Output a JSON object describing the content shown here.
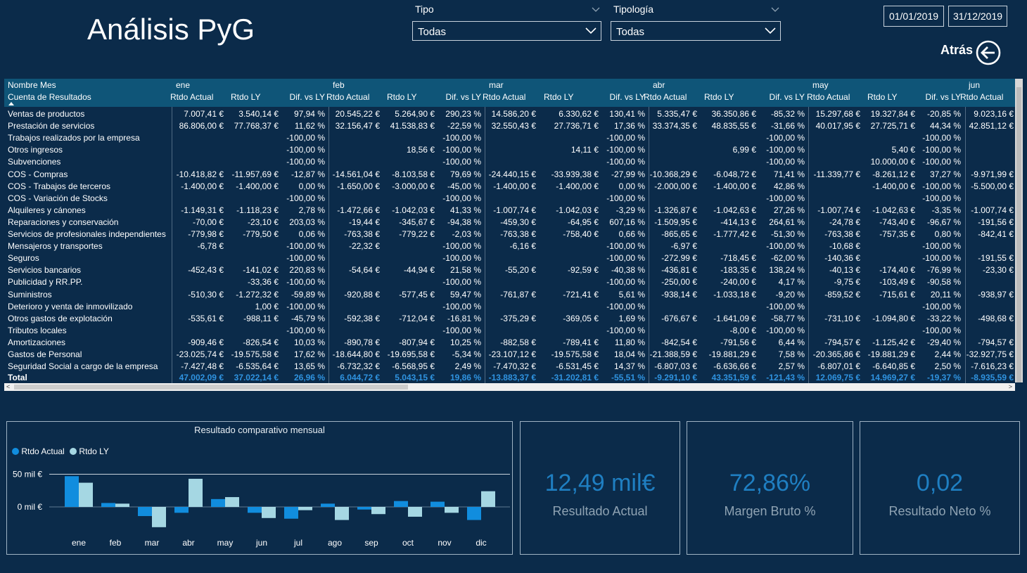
{
  "title": "Análisis PyG",
  "filters": {
    "tipo": {
      "label": "Tipo",
      "value": "Todas"
    },
    "tipologia": {
      "label": "Tipología",
      "value": "Todas"
    }
  },
  "date_range": {
    "start": "01/01/2019",
    "end": "31/12/2019"
  },
  "back_label": "Atrás",
  "matrix": {
    "row_header_1": "Nombre Mes",
    "row_header_2": "Cuenta de Resultados",
    "months": [
      "ene",
      "feb",
      "mar",
      "abr",
      "may",
      "jun"
    ],
    "measures": [
      "Rtdo Actual",
      "Rtdo LY",
      "Dif. vs LY"
    ],
    "rows": [
      {
        "label": "Ventas de productos",
        "values": [
          "7.007,41 €",
          "3.540,14 €",
          "97,94 %",
          "20.545,22 €",
          "5.264,90 €",
          "290,23 %",
          "14.586,20 €",
          "6.330,62 €",
          "130,41 %",
          "5.335,47 €",
          "36.350,86 €",
          "-85,32 %",
          "15.297,68 €",
          "19.327,84 €",
          "-20,85 %",
          "9.023,16 €"
        ]
      },
      {
        "label": "Prestación de servicios",
        "values": [
          "86.806,00 €",
          "77.768,37 €",
          "11,62 %",
          "32.156,47 €",
          "41.538,83 €",
          "-22,59 %",
          "32.550,43 €",
          "27.736,71 €",
          "17,36 %",
          "33.374,35 €",
          "48.835,55 €",
          "-31,66 %",
          "40.017,95 €",
          "27.725,71 €",
          "44,34 %",
          "42.851,12 €"
        ]
      },
      {
        "label": "Trabajos realizados por la empresa",
        "values": [
          "",
          "",
          "-100,00 %",
          "",
          "",
          "-100,00 %",
          "",
          "",
          "-100,00 %",
          "",
          "",
          "-100,00 %",
          "",
          "",
          "-100,00 %",
          ""
        ]
      },
      {
        "label": "Otros ingresos",
        "values": [
          "",
          "",
          "-100,00 %",
          "",
          "18,56 €",
          "-100,00 %",
          "",
          "14,11 €",
          "-100,00 %",
          "",
          "6,99 €",
          "-100,00 %",
          "",
          "5,40 €",
          "-100,00 %",
          ""
        ]
      },
      {
        "label": "Subvenciones",
        "values": [
          "",
          "",
          "-100,00 %",
          "",
          "",
          "-100,00 %",
          "",
          "",
          "-100,00 %",
          "",
          "",
          "-100,00 %",
          "",
          "10.000,00 €",
          "-100,00 %",
          ""
        ]
      },
      {
        "label": "COS - Compras",
        "values": [
          "-10.418,82 €",
          "-11.957,69 €",
          "-12,87 %",
          "-14.561,04 €",
          "-8.103,58 €",
          "79,69 %",
          "-24.440,15 €",
          "-33.939,38 €",
          "-27,99 %",
          "-10.368,29 €",
          "-6.048,72 €",
          "71,41 %",
          "-11.339,77 €",
          "-8.261,12 €",
          "37,27 %",
          "-9.971,99 €"
        ]
      },
      {
        "label": "COS - Trabajos de terceros",
        "values": [
          "-1.400,00 €",
          "-1.400,00 €",
          "0,00 %",
          "-1.650,00 €",
          "-3.000,00 €",
          "-45,00 %",
          "-1.400,00 €",
          "-1.400,00 €",
          "0,00 %",
          "-2.000,00 €",
          "-1.400,00 €",
          "42,86 %",
          "",
          "-1.400,00 €",
          "-100,00 %",
          "-5.500,00 €"
        ]
      },
      {
        "label": "COS - Variación de Stocks",
        "values": [
          "",
          "",
          "-100,00 %",
          "",
          "",
          "-100,00 %",
          "",
          "",
          "-100,00 %",
          "",
          "",
          "-100,00 %",
          "",
          "",
          "-100,00 %",
          ""
        ]
      },
      {
        "label": "Alquileres y cánones",
        "values": [
          "-1.149,31 €",
          "-1.118,23 €",
          "2,78 %",
          "-1.472,66 €",
          "-1.042,03 €",
          "41,33 %",
          "-1.007,74 €",
          "-1.042,03 €",
          "-3,29 %",
          "-1.326,87 €",
          "-1.042,63 €",
          "27,26 %",
          "-1.007,74 €",
          "-1.042,63 €",
          "-3,35 %",
          "-1.007,74 €"
        ]
      },
      {
        "label": "Reparaciones y conservación",
        "values": [
          "-70,00 €",
          "-23,10 €",
          "203,03 %",
          "-19,44 €",
          "-345,67 €",
          "-94,38 %",
          "-459,30 €",
          "-64,95 €",
          "607,16 %",
          "-1.509,95 €",
          "-414,13 €",
          "264,61 %",
          "-24,78 €",
          "-743,40 €",
          "-96,67 %",
          "-191,56 €"
        ]
      },
      {
        "label": "Servicios de profesionales independientes",
        "values": [
          "-779,98 €",
          "-779,50 €",
          "0,06 %",
          "-763,38 €",
          "-779,22 €",
          "-2,03 %",
          "-763,38 €",
          "-758,40 €",
          "0,66 %",
          "-865,65 €",
          "-1.777,42 €",
          "-51,30 %",
          "-763,38 €",
          "-757,35 €",
          "0,80 %",
          "-842,41 €"
        ]
      },
      {
        "label": "Mensajeros y transportes",
        "values": [
          "-6,78 €",
          "",
          "-100,00 %",
          "-22,32 €",
          "",
          "-100,00 %",
          "-6,16 €",
          "",
          "-100,00 %",
          "-6,97 €",
          "",
          "-100,00 %",
          "-10,68 €",
          "",
          "-100,00 %",
          ""
        ]
      },
      {
        "label": "Seguros",
        "values": [
          "",
          "",
          "-100,00 %",
          "",
          "",
          "-100,00 %",
          "",
          "",
          "-100,00 %",
          "-272,99 €",
          "-718,45 €",
          "-62,00 %",
          "-140,36 €",
          "",
          "-100,00 %",
          "-191,55 €"
        ]
      },
      {
        "label": "Servicios bancarios",
        "values": [
          "-452,43 €",
          "-141,02 €",
          "220,83 %",
          "-54,64 €",
          "-44,94 €",
          "21,58 %",
          "-55,20 €",
          "-92,59 €",
          "-40,38 %",
          "-436,81 €",
          "-183,35 €",
          "138,24 %",
          "-40,13 €",
          "-174,40 €",
          "-76,99 %",
          "-23,30 €"
        ]
      },
      {
        "label": "Publicidad y RR.PP.",
        "values": [
          "",
          "-33,36 €",
          "-100,00 %",
          "",
          "",
          "-100,00 %",
          "",
          "",
          "-100,00 %",
          "-250,00 €",
          "-240,00 €",
          "4,17 %",
          "-9,75 €",
          "-103,49 €",
          "-90,58 %",
          ""
        ]
      },
      {
        "label": "Suministros",
        "values": [
          "-510,30 €",
          "-1.272,32 €",
          "-59,89 %",
          "-920,88 €",
          "-577,45 €",
          "59,47 %",
          "-761,87 €",
          "-721,41 €",
          "5,61 %",
          "-938,14 €",
          "-1.033,18 €",
          "-9,20 %",
          "-859,52 €",
          "-715,61 €",
          "20,11 %",
          "-938,97 €"
        ]
      },
      {
        "label": "Deterioro y venta de inmovilizado",
        "values": [
          "",
          "1,00 €",
          "-100,00 %",
          "",
          "",
          "-100,00 %",
          "",
          "",
          "-100,00 %",
          "",
          "",
          "-100,00 %",
          "",
          "",
          "-100,00 %",
          ""
        ]
      },
      {
        "label": "Otros gastos de explotación",
        "values": [
          "-535,61 €",
          "-988,11 €",
          "-45,79 %",
          "-592,38 €",
          "-712,04 €",
          "-16,81 %",
          "-375,29 €",
          "-369,05 €",
          "1,69 %",
          "-676,67 €",
          "-1.641,09 €",
          "-58,77 %",
          "-731,10 €",
          "-1.094,80 €",
          "-33,22 %",
          "-498,68 €"
        ]
      },
      {
        "label": "Tributos locales",
        "values": [
          "",
          "",
          "-100,00 %",
          "",
          "",
          "-100,00 %",
          "",
          "",
          "-100,00 %",
          "",
          "-8,00 €",
          "-100,00 %",
          "",
          "",
          "-100,00 %",
          ""
        ]
      },
      {
        "label": "Amortizaciones",
        "values": [
          "-909,46 €",
          "-826,54 €",
          "10,03 %",
          "-890,78 €",
          "-807,94 €",
          "10,25 %",
          "-882,58 €",
          "-789,41 €",
          "11,80 %",
          "-842,54 €",
          "-791,56 €",
          "6,44 %",
          "-794,57 €",
          "-1.125,42 €",
          "-29,40 %",
          "-794,57 €"
        ]
      },
      {
        "label": "Gastos de Personal",
        "values": [
          "-23.025,74 €",
          "-19.575,58 €",
          "17,62 %",
          "-18.644,80 €",
          "-19.695,58 €",
          "-5,34 %",
          "-23.107,12 €",
          "-19.575,58 €",
          "18,04 %",
          "-21.388,59 €",
          "-19.881,29 €",
          "7,58 %",
          "-20.365,86 €",
          "-19.881,29 €",
          "2,44 %",
          "-32.927,75 €"
        ]
      },
      {
        "label": "Seguridad Social a cargo de la empresa",
        "values": [
          "-7.427,48 €",
          "-6.535,64 €",
          "13,65 %",
          "-6.732,32 €",
          "-6.568,95 €",
          "2,49 %",
          "-7.470,32 €",
          "-6.531,45 €",
          "14,37 %",
          "-6.807,03 €",
          "-6.636,66 €",
          "2,57 %",
          "-6.807,01 €",
          "-6.640,85 €",
          "2,50 %",
          "-7.616,23 €"
        ]
      }
    ],
    "total": {
      "label": "Total",
      "values": [
        "47.002,09 €",
        "37.022,14 €",
        "26,96 %",
        "6.044,72 €",
        "5.043,15 €",
        "19,86 %",
        "-13.883,37 €",
        "-31.202,81 €",
        "-55,51 %",
        "-9.291,10 €",
        "43.351,59 €",
        "-121,43 %",
        "12.069,75 €",
        "14.969,27 €",
        "-19,37 %",
        "-8.935,59 €"
      ]
    }
  },
  "chart": {
    "title": "Resultado comparativo mensual",
    "legend": [
      "Rtdo Actual",
      "Rtdo LY"
    ],
    "tick_labels": [
      "50 mil €",
      "0 mil €"
    ],
    "colors": {
      "actual": "#118dde",
      "ly": "#a5d7e3"
    }
  },
  "chart_data": {
    "type": "bar",
    "title": "Resultado comparativo mensual",
    "categories": [
      "ene",
      "feb",
      "mar",
      "abr",
      "may",
      "jun",
      "jul",
      "ago",
      "sep",
      "oct",
      "nov",
      "dic"
    ],
    "series": [
      {
        "name": "Rtdo Actual",
        "values": [
          47,
          6,
          -14,
          -9,
          12,
          -9,
          -18,
          5,
          -4,
          9,
          8,
          -20
        ]
      },
      {
        "name": "Rtdo LY",
        "values": [
          37,
          5,
          -31,
          43,
          15,
          -17,
          -5,
          -20,
          -11,
          -15,
          -9,
          24
        ]
      }
    ],
    "ylim": [
      -35,
      55
    ],
    "grid": true,
    "legend_position": "top-left"
  },
  "kpis": [
    {
      "value": "12,49 mil€",
      "label": "Resultado Actual"
    },
    {
      "value": "72,86%",
      "label": "Margen Bruto %"
    },
    {
      "value": "0,02",
      "label": "Resultado Neto %"
    }
  ]
}
